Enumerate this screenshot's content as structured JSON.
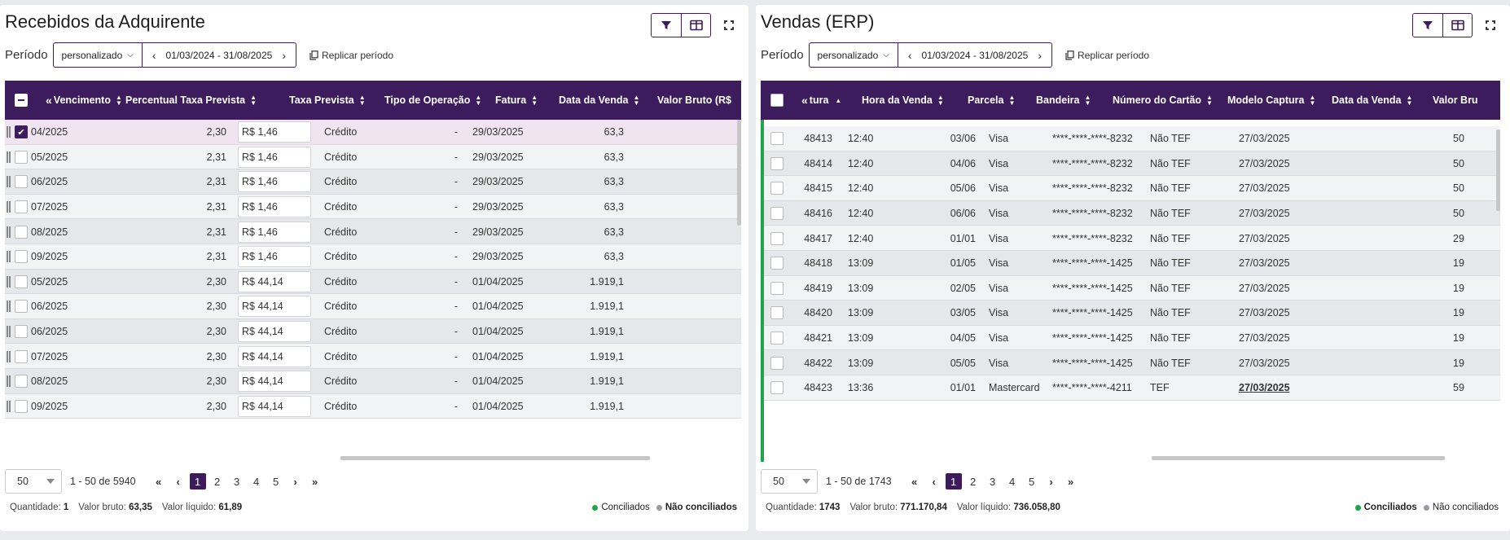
{
  "colors": {
    "primary": "#3d1c5e",
    "conciliado": "#1ea44a",
    "nao_conciliado": "#9a9aa3"
  },
  "left": {
    "title": "Recebidos da Adquirente",
    "periodo_label": "Período",
    "periodo_select": "personalizado",
    "periodo_range": "01/03/2024 - 31/08/2025",
    "replicar": "Replicar período",
    "columns": [
      "Vencimento",
      "Percentual Taxa Prevista",
      "Taxa Prevista",
      "Tipo de Operação",
      "Fatura",
      "Data da Venda",
      "Valor Bruto (R$"
    ],
    "rows": [
      {
        "venc": "04/2025",
        "pct": "2,30",
        "taxa": "R$ 1,46",
        "tipo": "Crédito",
        "fatura": "-",
        "data": "29/03/2025",
        "bruto": "63,3",
        "checked": true
      },
      {
        "venc": "05/2025",
        "pct": "2,31",
        "taxa": "R$ 1,46",
        "tipo": "Crédito",
        "fatura": "-",
        "data": "29/03/2025",
        "bruto": "63,3"
      },
      {
        "venc": "06/2025",
        "pct": "2,31",
        "taxa": "R$ 1,46",
        "tipo": "Crédito",
        "fatura": "-",
        "data": "29/03/2025",
        "bruto": "63,3"
      },
      {
        "venc": "07/2025",
        "pct": "2,31",
        "taxa": "R$ 1,46",
        "tipo": "Crédito",
        "fatura": "-",
        "data": "29/03/2025",
        "bruto": "63,3"
      },
      {
        "venc": "08/2025",
        "pct": "2,31",
        "taxa": "R$ 1,46",
        "tipo": "Crédito",
        "fatura": "-",
        "data": "29/03/2025",
        "bruto": "63,3"
      },
      {
        "venc": "09/2025",
        "pct": "2,31",
        "taxa": "R$ 1,46",
        "tipo": "Crédito",
        "fatura": "-",
        "data": "29/03/2025",
        "bruto": "63,3"
      },
      {
        "venc": "05/2025",
        "pct": "2,30",
        "taxa": "R$ 44,14",
        "tipo": "Crédito",
        "fatura": "-",
        "data": "01/04/2025",
        "bruto": "1.919,1"
      },
      {
        "venc": "06/2025",
        "pct": "2,30",
        "taxa": "R$ 44,14",
        "tipo": "Crédito",
        "fatura": "-",
        "data": "01/04/2025",
        "bruto": "1.919,1"
      },
      {
        "venc": "06/2025",
        "pct": "2,30",
        "taxa": "R$ 44,14",
        "tipo": "Crédito",
        "fatura": "-",
        "data": "01/04/2025",
        "bruto": "1.919,1"
      },
      {
        "venc": "07/2025",
        "pct": "2,30",
        "taxa": "R$ 44,14",
        "tipo": "Crédito",
        "fatura": "-",
        "data": "01/04/2025",
        "bruto": "1.919,1"
      },
      {
        "venc": "08/2025",
        "pct": "2,30",
        "taxa": "R$ 44,14",
        "tipo": "Crédito",
        "fatura": "-",
        "data": "01/04/2025",
        "bruto": "1.919,1"
      },
      {
        "venc": "09/2025",
        "pct": "2,30",
        "taxa": "R$ 44,14",
        "tipo": "Crédito",
        "fatura": "-",
        "data": "01/04/2025",
        "bruto": "1.919,1"
      }
    ],
    "page_size": "50",
    "page_range": "1 - 50 de 5940",
    "pages": [
      "1",
      "2",
      "3",
      "4",
      "5"
    ],
    "footer": {
      "qtd_label": "Quantidade:",
      "qtd": "1",
      "bruto_label": "Valor bruto:",
      "bruto": "63,35",
      "liquido_label": "Valor líquido:",
      "liquido": "61,89",
      "conciliados": "Conciliados",
      "nao_conciliados": "Não conciliados"
    }
  },
  "right": {
    "title": "Vendas (ERP)",
    "periodo_label": "Período",
    "periodo_select": "personalizado",
    "periodo_range": "01/03/2024 - 31/08/2025",
    "replicar": "Replicar período",
    "columns": [
      "tura",
      "Hora da Venda",
      "Parcela",
      "Bandeira",
      "Número do Cartão",
      "Modelo Captura",
      "Data da Venda",
      "Valor Bru"
    ],
    "rows": [
      {
        "nf": "48413",
        "hora": "12:40",
        "parcela": "03/06",
        "bandeira": "Visa",
        "cartao": "****-****-****-8232",
        "modelo": "Não TEF",
        "data": "27/03/2025",
        "valor": "50"
      },
      {
        "nf": "48414",
        "hora": "12:40",
        "parcela": "04/06",
        "bandeira": "Visa",
        "cartao": "****-****-****-8232",
        "modelo": "Não TEF",
        "data": "27/03/2025",
        "valor": "50"
      },
      {
        "nf": "48415",
        "hora": "12:40",
        "parcela": "05/06",
        "bandeira": "Visa",
        "cartao": "****-****-****-8232",
        "modelo": "Não TEF",
        "data": "27/03/2025",
        "valor": "50"
      },
      {
        "nf": "48416",
        "hora": "12:40",
        "parcela": "06/06",
        "bandeira": "Visa",
        "cartao": "****-****-****-8232",
        "modelo": "Não TEF",
        "data": "27/03/2025",
        "valor": "50"
      },
      {
        "nf": "48417",
        "hora": "12:40",
        "parcela": "01/01",
        "bandeira": "Visa",
        "cartao": "****-****-****-8232",
        "modelo": "Não TEF",
        "data": "27/03/2025",
        "valor": "29"
      },
      {
        "nf": "48418",
        "hora": "13:09",
        "parcela": "01/05",
        "bandeira": "Visa",
        "cartao": "****-****-****-1425",
        "modelo": "Não TEF",
        "data": "27/03/2025",
        "valor": "19"
      },
      {
        "nf": "48419",
        "hora": "13:09",
        "parcela": "02/05",
        "bandeira": "Visa",
        "cartao": "****-****-****-1425",
        "modelo": "Não TEF",
        "data": "27/03/2025",
        "valor": "19"
      },
      {
        "nf": "48420",
        "hora": "13:09",
        "parcela": "03/05",
        "bandeira": "Visa",
        "cartao": "****-****-****-1425",
        "modelo": "Não TEF",
        "data": "27/03/2025",
        "valor": "19"
      },
      {
        "nf": "48421",
        "hora": "13:09",
        "parcela": "04/05",
        "bandeira": "Visa",
        "cartao": "****-****-****-1425",
        "modelo": "Não TEF",
        "data": "27/03/2025",
        "valor": "19"
      },
      {
        "nf": "48422",
        "hora": "13:09",
        "parcela": "05/05",
        "bandeira": "Visa",
        "cartao": "****-****-****-1425",
        "modelo": "Não TEF",
        "data": "27/03/2025",
        "valor": "19"
      },
      {
        "nf": "48423",
        "hora": "13:36",
        "parcela": "01/01",
        "bandeira": "Mastercard",
        "cartao": "****-****-****-4211",
        "modelo": "TEF",
        "data": "27/03/2025",
        "valor": "59",
        "data_link": true
      }
    ],
    "page_size": "50",
    "page_range": "1 - 50 de 1743",
    "pages": [
      "1",
      "2",
      "3",
      "4",
      "5"
    ],
    "footer": {
      "qtd_label": "Quantidade:",
      "qtd": "1743",
      "bruto_label": "Valor bruto:",
      "bruto": "771.170,84",
      "liquido_label": "Valor líquido:",
      "liquido": "736.058,80",
      "conciliados": "Conciliados",
      "nao_conciliados": "Não conciliados"
    }
  }
}
